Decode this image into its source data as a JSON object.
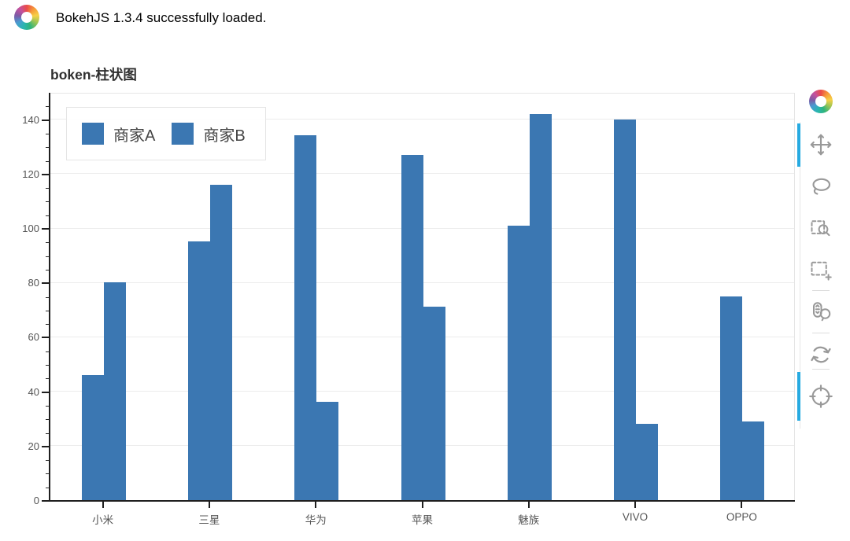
{
  "status": {
    "text": "BokehJS 1.3.4 successfully loaded."
  },
  "chart_data": {
    "type": "bar",
    "title": "boken-柱状图",
    "categories": [
      "小米",
      "三星",
      "华为",
      "苹果",
      "魅族",
      "VIVO",
      "OPPO"
    ],
    "series": [
      {
        "name": "商家A",
        "values": [
          46,
          95,
          134,
          127,
          101,
          140,
          75
        ]
      },
      {
        "name": "商家B",
        "values": [
          80,
          116,
          36,
          71,
          142,
          28,
          29
        ]
      }
    ],
    "ylim": [
      0,
      150
    ],
    "yticks": [
      0,
      20,
      40,
      60,
      80,
      100,
      120,
      140
    ],
    "y_minor_tick_step": 5,
    "grid": "horizontal only",
    "legend_position": "top_left",
    "bar_color": "#3B77B2"
  },
  "toolbar": {
    "logo": "bokeh-logo",
    "active_indicator_color": "#26aae1",
    "tools": [
      {
        "id": "pan",
        "active": true
      },
      {
        "id": "lasso-select",
        "active": false
      },
      {
        "id": "box-zoom",
        "active": false
      },
      {
        "id": "box-select",
        "active": false
      },
      {
        "id": "wheel-zoom",
        "active": false
      },
      {
        "id": "reset",
        "active": false
      },
      {
        "id": "crosshair",
        "active": true
      }
    ]
  },
  "colors": {
    "bar": "#3B77B2",
    "axis": "#1f1f1f",
    "grid": "#ececec",
    "tick_label": "#555555",
    "title": "#2f2f2f",
    "icon": "#999999",
    "frame_border": "#e5e5e5"
  }
}
